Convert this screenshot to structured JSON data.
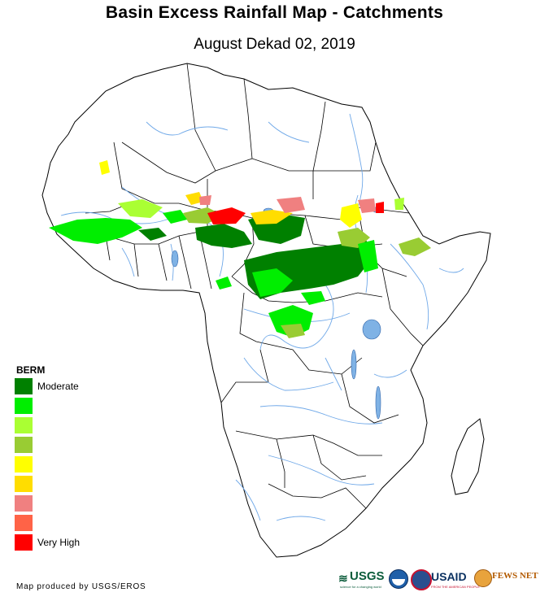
{
  "header": {
    "title": "Basin Excess Rainfall Map - Catchments",
    "subtitle": "August Dekad 02, 2019"
  },
  "legend": {
    "title": "BERM",
    "classes": [
      {
        "color": "#008000",
        "label": "Moderate"
      },
      {
        "color": "#00ee00",
        "label": ""
      },
      {
        "color": "#aaff33",
        "label": ""
      },
      {
        "color": "#99cc33",
        "label": ""
      },
      {
        "color": "#ffff00",
        "label": ""
      },
      {
        "color": "#ffdd00",
        "label": ""
      },
      {
        "color": "#f08080",
        "label": ""
      },
      {
        "color": "#ff6347",
        "label": ""
      },
      {
        "color": "#ff0000",
        "label": "Very High"
      }
    ]
  },
  "footer": {
    "credit": "Map produced by USGS/EROS"
  },
  "logos": {
    "usgs": "USGS",
    "usgs_tagline": "science for a changing world",
    "usaid": "USAID",
    "usaid_tagline": "FROM THE AMERICAN PEOPLE",
    "fewsnet": "FEWS NET"
  },
  "colors": {
    "land": "#ffffff",
    "border": "#000000",
    "river": "#6fa8e8",
    "lake": "#7fb2e5"
  }
}
